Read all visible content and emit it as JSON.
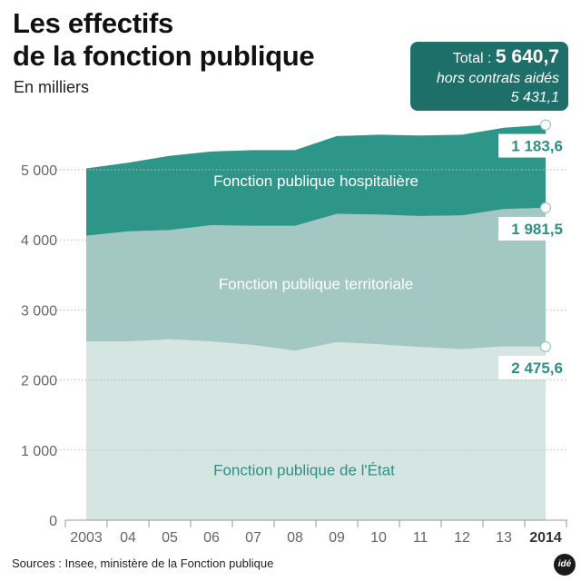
{
  "title_line1": "Les effectifs",
  "title_line2": "de la fonction publique",
  "subtitle": "En milliers",
  "total_box": {
    "total_label": "Total : ",
    "total_value": "5 640,7",
    "line2": "hors contrats aidés",
    "line3": "5 431,1"
  },
  "source": "Sources : Insee, ministère de la Fonction publique",
  "logo_text": "idé",
  "colors": {
    "hospital": "#2e9688",
    "territorial": "#a3c8c3",
    "state": "#d5e5e2",
    "callout_text": "#2e8f86",
    "grid": "#bbbbbb"
  },
  "chart_data": {
    "type": "area",
    "stacked": true,
    "categories": [
      "2003",
      "04",
      "05",
      "06",
      "07",
      "08",
      "09",
      "10",
      "11",
      "12",
      "13",
      "2014"
    ],
    "ylim": [
      0,
      5800
    ],
    "yticks": [
      0,
      1000,
      2000,
      3000,
      4000,
      5000
    ],
    "ytick_labels": [
      "0",
      "1 000",
      "2 000",
      "3 000",
      "4 000",
      "5 000"
    ],
    "grid": "horizontal dotted",
    "series": [
      {
        "name": "Fonction publique de l'État",
        "values": [
          2550,
          2550,
          2580,
          2550,
          2500,
          2420,
          2540,
          2510,
          2470,
          2440,
          2480,
          2475.6
        ],
        "color_key": "state",
        "end_label": "2 475,6"
      },
      {
        "name": "Fonction publique territoriale",
        "values": [
          1510,
          1570,
          1560,
          1660,
          1700,
          1780,
          1830,
          1850,
          1870,
          1910,
          1960,
          1981.5
        ],
        "color_key": "territorial",
        "end_label": "1 981,5"
      },
      {
        "name": "Fonction publique hospitalière",
        "values": [
          960,
          980,
          1060,
          1050,
          1080,
          1080,
          1110,
          1140,
          1150,
          1150,
          1160,
          1183.6
        ],
        "color_key": "hospital",
        "end_label": "1 183,6"
      }
    ]
  }
}
